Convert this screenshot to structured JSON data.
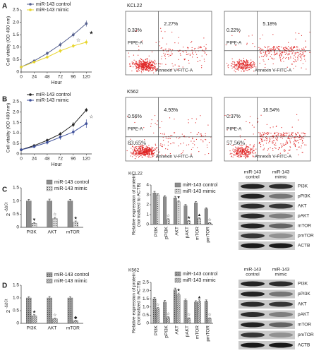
{
  "panel_labels": [
    "A",
    "B",
    "C",
    "D"
  ],
  "chart_data": [
    {
      "type": "line",
      "xlabel": "Hour",
      "ylabel": "Cell vitality (OD 490 nm)",
      "x": [
        0,
        24,
        48,
        72,
        96,
        120
      ],
      "xlim": [
        0,
        130
      ],
      "xticks": [
        0,
        24,
        48,
        72,
        96,
        120
      ],
      "ylim": [
        0,
        2.5
      ],
      "yticks": [
        0,
        0.5,
        {
          "value": 1,
          "label": "1.0"
        },
        1.5,
        {
          "value": 2,
          "label": "2.0"
        },
        2.5
      ],
      "series": [
        {
          "name": "miR-143 control",
          "color": "#55608f",
          "values": [
            0.2,
            0.45,
            0.75,
            1.1,
            1.5,
            1.95
          ],
          "errors": [
            0.03,
            0.05,
            0.08,
            0.1,
            0.1,
            0.12
          ]
        },
        {
          "name": "miR-143 mimic",
          "color": "#e8d52c",
          "values": [
            0.2,
            0.4,
            0.6,
            0.85,
            1.05,
            1.2
          ],
          "errors": [
            0.03,
            0.04,
            0.06,
            0.08,
            0.08,
            0.1
          ]
        }
      ],
      "annotations": [
        "☆",
        "★"
      ]
    },
    {
      "type": "line",
      "xlabel": "Hour",
      "ylabel": "Cell vitality (OD 490 nm)",
      "x": [
        0,
        24,
        48,
        72,
        96,
        120
      ],
      "xlim": [
        0,
        130
      ],
      "xticks": [
        0,
        24,
        48,
        72,
        96,
        120
      ],
      "ylim": [
        0,
        2.5
      ],
      "yticks": [
        0,
        0.5,
        {
          "value": 1,
          "label": "1.0"
        },
        1.5,
        {
          "value": 2,
          "label": "2.0"
        },
        2.5
      ],
      "series": [
        {
          "name": "miR-143 control",
          "color": "#222222",
          "values": [
            0.2,
            0.4,
            0.65,
            0.95,
            1.4,
            2.1
          ],
          "errors": [
            0.03,
            0.05,
            0.08,
            0.1,
            0.12,
            0.1
          ]
        },
        {
          "name": "miR-143 mimic",
          "color": "#3d4f9a",
          "values": [
            0.2,
            0.35,
            0.55,
            0.8,
            1.05,
            1.45
          ],
          "errors": [
            0.03,
            0.06,
            0.1,
            0.12,
            0.15,
            0.2
          ]
        }
      ],
      "annotations": [
        "☆"
      ]
    },
    {
      "type": "bar",
      "ylabel": "2",
      "ylabel_exponent": "-ΔΔCt",
      "categories": [
        "PI3K",
        "AKT",
        "mTOR"
      ],
      "ylim": [
        0,
        1.5
      ],
      "yticks": [
        0,
        0.5,
        {
          "value": 1,
          "label": "1.0"
        },
        1.5
      ],
      "series": [
        {
          "name": "miR-143 control",
          "color": "#8c8c8c",
          "values": [
            1,
            1,
            1
          ],
          "errors": [
            0.06,
            0.07,
            0.06
          ]
        },
        {
          "name": "miR-143 mimic",
          "color": "#d9d9d9",
          "pattern": "dots",
          "values": [
            0.15,
            0.33,
            0.2
          ],
          "errors": [
            0.03,
            0.05,
            0.04
          ],
          "annotations": [
            "▼",
            "☆",
            "★"
          ]
        }
      ]
    },
    {
      "type": "bar",
      "title": "KCL22",
      "ylabel": "Relative expression of protein",
      "ylabel2": "(normalized to ACTB)",
      "categories": [
        "PI3K",
        "pPI3K",
        "AKT",
        "pAKT",
        "mTOR",
        "pmTOR"
      ],
      "ylim": [
        0,
        4
      ],
      "yticks": [
        0,
        1,
        2,
        3,
        4
      ],
      "series": [
        {
          "name": "miR-143 control",
          "color": "#8c8c8c",
          "values": [
            3.2,
            2.8,
            2.7,
            1.9,
            2.2,
            1.6
          ],
          "errors": [
            0.15,
            0.12,
            0.15,
            0.12,
            0.12,
            0.1
          ]
        },
        {
          "name": "miR-143 mimic",
          "color": "#d9d9d9",
          "pattern": "dots",
          "values": [
            3.0,
            0.5,
            2.3,
            0.35,
            0.6,
            0.15
          ],
          "errors": [
            0.12,
            0.08,
            0.12,
            0.06,
            0.08,
            0.04
          ],
          "annotations": [
            null,
            "☆",
            "▼",
            "★",
            "▲",
            "☆"
          ]
        }
      ]
    },
    {
      "type": "bar",
      "ylabel": "2",
      "ylabel_exponent": "-ΔΔCt",
      "categories": [
        "PI3K",
        "AKT",
        "mTOR"
      ],
      "ylim": [
        0,
        1.5
      ],
      "yticks": [
        0,
        0.5,
        {
          "value": 1,
          "label": "1.0"
        },
        1.5
      ],
      "series": [
        {
          "name": "miR-143 control",
          "color": "#9a9a9a",
          "pattern": "dots",
          "values": [
            1,
            1,
            1
          ],
          "errors": [
            0.05,
            0.06,
            0.05
          ]
        },
        {
          "name": "miR-143 mimic",
          "color": "#cfcfcf",
          "pattern": "hatch",
          "values": [
            0.3,
            0.18,
            0.1
          ],
          "errors": [
            0.04,
            0.03,
            0.02
          ],
          "annotations": [
            "★",
            "☆",
            "◆"
          ]
        }
      ]
    },
    {
      "type": "bar",
      "title": "K562",
      "ylabel": "Relative expression of protein",
      "ylabel2": "(normalized to ACTB)",
      "categories": [
        "PI3K",
        "pPI3K",
        "AKT",
        "pAKT",
        "mTOR",
        "pmTOR"
      ],
      "ylim": [
        0,
        2.5
      ],
      "yticks": [
        0,
        0.5,
        {
          "value": 1,
          "label": "1.0"
        },
        1.5,
        {
          "value": 2,
          "label": "2.0"
        },
        2.5
      ],
      "series": [
        {
          "name": "miR-143 control",
          "color": "#9a9a9a",
          "pattern": "dots",
          "values": [
            1.5,
            1.3,
            2.05,
            1.4,
            1.3,
            1.35
          ],
          "errors": [
            0.08,
            0.1,
            0.1,
            0.08,
            0.08,
            0.08
          ]
        },
        {
          "name": "miR-143 mimic",
          "color": "#cfcfcf",
          "pattern": "hatch",
          "values": [
            0.9,
            0.35,
            1.75,
            0.3,
            1.35,
            0.3
          ],
          "errors": [
            0.06,
            0.05,
            0.1,
            0.04,
            0.08,
            0.04
          ],
          "annotations": [
            "☆",
            "☆",
            "★",
            "☆",
            "▲",
            "☆"
          ]
        }
      ]
    }
  ],
  "flow_cytometry": [
    {
      "title": "KCL22",
      "plots": [
        {
          "y_label": "PIPE-A",
          "x_label": "Annexin V-FITC-A",
          "upper_left": "0.32%",
          "upper_right": "2.27%"
        },
        {
          "y_label": "PIPE-A",
          "x_label": "Annexin V-FITC-A",
          "upper_left": "0.22%",
          "upper_right": "5.18%"
        }
      ]
    },
    {
      "title": "K562",
      "plots": [
        {
          "y_label": "PIPE-A",
          "x_label": "Annexin V-FITC-A",
          "upper_left": "0.56%",
          "upper_right": "4.93%",
          "lower_left": "83.65%"
        },
        {
          "y_label": "PIPE-A",
          "x_label": "Annexin V-FITC-A",
          "upper_left": "0.37%",
          "upper_right": "16.54%",
          "lower_left": "57.56%"
        }
      ]
    }
  ],
  "western_blots": [
    {
      "columns": [
        [
          "miR-143",
          "control"
        ],
        [
          "miR-143",
          "mimic"
        ]
      ],
      "rows": [
        "PI3K",
        "pPI3K",
        "AKT",
        "pAKT",
        "mTOR",
        "pmTOR",
        "ACTB"
      ]
    },
    {
      "columns": [
        [
          "miR-143",
          "control"
        ],
        [
          "miR-143",
          "mimic"
        ]
      ],
      "rows": [
        "PI3K",
        "pPI3K",
        "AKT",
        "pAKT",
        "mTOR",
        "pmTOR",
        "ACTB"
      ]
    }
  ]
}
